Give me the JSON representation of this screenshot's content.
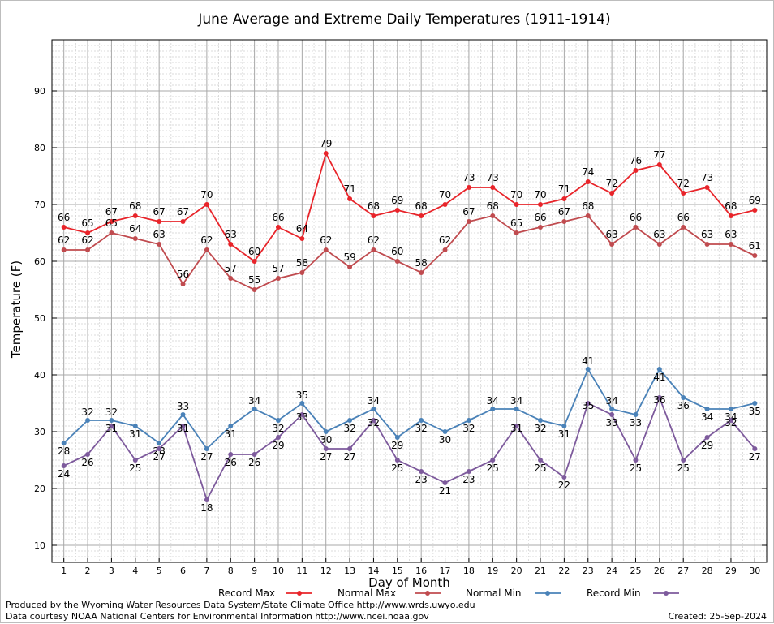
{
  "chart_data": {
    "type": "line",
    "title": "June Average and Extreme Daily Temperatures (1911-1914)",
    "xlabel": "Day of Month",
    "ylabel": "Temperature (F)",
    "x": [
      1,
      2,
      3,
      4,
      5,
      6,
      7,
      8,
      9,
      10,
      11,
      12,
      13,
      14,
      15,
      16,
      17,
      18,
      19,
      20,
      21,
      22,
      23,
      24,
      25,
      26,
      27,
      28,
      29,
      30
    ],
    "xlim": [
      0.5,
      30.5
    ],
    "ylim": [
      7,
      99
    ],
    "yticks": [
      10,
      20,
      30,
      40,
      50,
      60,
      70,
      80,
      90
    ],
    "grid": true,
    "legend_position": "bottom",
    "series": [
      {
        "name": "Record Max",
        "color": "#e8242a",
        "values": [
          66,
          65,
          67,
          68,
          67,
          67,
          70,
          63,
          60,
          66,
          64,
          79,
          71,
          68,
          69,
          68,
          70,
          73,
          73,
          70,
          70,
          71,
          74,
          72,
          76,
          77,
          72,
          73,
          68,
          69
        ]
      },
      {
        "name": "Normal Max",
        "color": "#c04b4f",
        "values": [
          62,
          62,
          65,
          64,
          63,
          56,
          62,
          57,
          55,
          57,
          58,
          62,
          59,
          62,
          60,
          58,
          62,
          67,
          68,
          65,
          66,
          67,
          68,
          63,
          66,
          63,
          66,
          63,
          63,
          61
        ]
      },
      {
        "name": "Normal Min",
        "color": "#4a82b8",
        "values": [
          28,
          32,
          32,
          31,
          28,
          33,
          27,
          31,
          34,
          32,
          35,
          30,
          32,
          34,
          29,
          32,
          30,
          32,
          34,
          34,
          32,
          31,
          41,
          34,
          33,
          41,
          36,
          34,
          34,
          35
        ]
      },
      {
        "name": "Record Min",
        "color": "#7d5a9c",
        "values": [
          24,
          26,
          31,
          25,
          27,
          31,
          18,
          26,
          26,
          29,
          33,
          27,
          27,
          32,
          25,
          23,
          21,
          23,
          25,
          31,
          25,
          22,
          35,
          33,
          25,
          36,
          25,
          29,
          32,
          27
        ]
      }
    ]
  },
  "footer": {
    "credit_line_1": "Produced by the Wyoming Water Resources Data System/State Climate Office http://www.wrds.uwyo.edu",
    "credit_line_2": "Data courtesy NOAA National Centers for Environmental Information http://www.ncei.noaa.gov",
    "created": "Created:  25-Sep-2024"
  }
}
